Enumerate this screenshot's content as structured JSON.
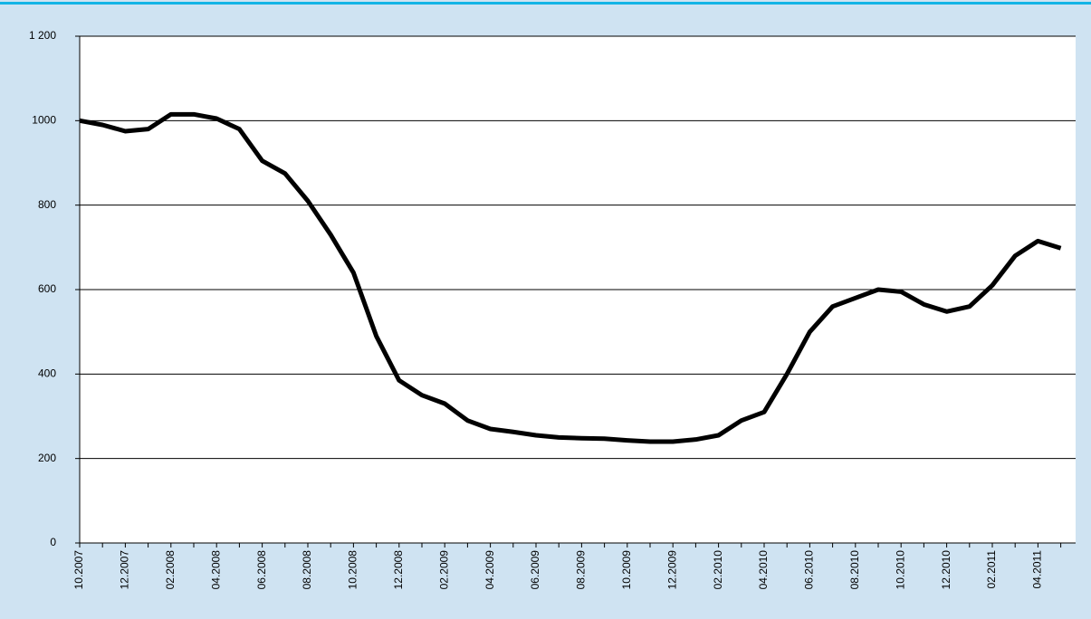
{
  "chart_data": {
    "type": "line",
    "categories": [
      "10.2007",
      null,
      "12.2007",
      null,
      "02.2008",
      null,
      "04.2008",
      null,
      "06.2008",
      null,
      "08.2008",
      null,
      "10.2008",
      null,
      "12.2008",
      null,
      "02.2009",
      null,
      "04.2009",
      null,
      "06.2009",
      null,
      "08.2009",
      null,
      "10.2009",
      null,
      "12.2009",
      null,
      "02.2010",
      null,
      "04.2010",
      null,
      "06.2010",
      null,
      "08.2010",
      null,
      "10.2010",
      null,
      "12.2010",
      null,
      "02.2011",
      null,
      "04.2011",
      null
    ],
    "series": [
      {
        "color": "#000000",
        "values": [
          1000,
          990,
          975,
          980,
          1015,
          1015,
          1005,
          980,
          905,
          875,
          810,
          730,
          640,
          490,
          385,
          350,
          330,
          290,
          270,
          263,
          255,
          250,
          248,
          247,
          243,
          240,
          240,
          245,
          255,
          290,
          310,
          400,
          500,
          560,
          580,
          600,
          595,
          565,
          548,
          560,
          610,
          680,
          715,
          698
        ]
      }
    ],
    "ylim": [
      0,
      1200
    ],
    "yticks": [
      0,
      200,
      400,
      600,
      800,
      1000,
      {
        "value": 1200,
        "label": "1 200"
      }
    ],
    "grid": true
  }
}
